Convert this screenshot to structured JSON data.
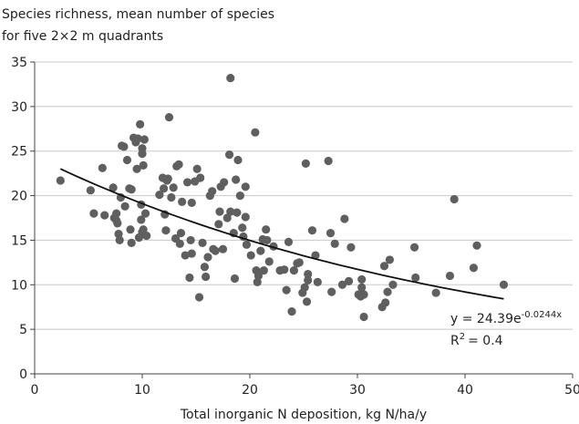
{
  "chart_data": {
    "type": "scatter",
    "title": [
      "Species richness, mean number of species",
      "for five 2×2 m quadrants"
    ],
    "x_label": "Total inorganic N deposition, kg N/ha/y",
    "xlim": [
      0,
      50
    ],
    "xticks": [
      0,
      10,
      20,
      30,
      40,
      50
    ],
    "ylim": [
      0,
      35
    ],
    "yticks": [
      0,
      5,
      10,
      15,
      20,
      25,
      30,
      35
    ],
    "grid": true,
    "color": "#5f5f5f",
    "trendline": {
      "coefficient": 24.39,
      "rate": -0.0244,
      "xlim": [
        2.4,
        43.6
      ]
    },
    "equation": {
      "base": "y = 24.39e",
      "exponent": "-0.0244x"
    },
    "r_squared": {
      "base": "R",
      "sup": "2",
      "rest": "= 0.4"
    },
    "x": [
      2.4,
      5.2,
      5.5,
      6.3,
      6.5,
      7.3,
      7.4,
      7.6,
      7.6,
      7.7,
      7.8,
      7.9,
      8,
      8.1,
      8.3,
      8.4,
      8.6,
      8.8,
      9,
      8.9,
      9,
      9.2,
      9.4,
      9.5,
      9.6,
      9.7,
      9.8,
      9.9,
      9.9,
      10,
      10,
      10.1,
      10.2,
      10,
      10.1,
      10.3,
      10.4,
      11.6,
      11.9,
      12,
      12.1,
      12.2,
      12.3,
      12.4,
      12.5,
      12.7,
      12.9,
      13.1,
      13.2,
      13.4,
      13.5,
      13.6,
      13.7,
      14,
      14.2,
      14.4,
      14.5,
      14.6,
      14.6,
      14.9,
      15.1,
      15.3,
      15.4,
      15.6,
      15.8,
      15.9,
      16.1,
      16.3,
      16.5,
      16.6,
      16.8,
      17.1,
      17.2,
      17.3,
      17.5,
      17.6,
      17.9,
      18.1,
      18.2,
      18.2,
      18.5,
      18.6,
      18.7,
      18.8,
      18.9,
      19.1,
      19.3,
      19.4,
      19.6,
      19.6,
      19.7,
      20.1,
      20.5,
      20.6,
      20.7,
      20.8,
      21,
      21.2,
      21.3,
      21.5,
      21.6,
      21.8,
      22.2,
      22.8,
      23.2,
      23.4,
      23.6,
      23.9,
      24.1,
      24.4,
      24.6,
      24.9,
      25.1,
      25.2,
      25.3,
      25.4,
      25.4,
      25.8,
      26.1,
      26.3,
      27.3,
      27.5,
      27.6,
      27.9,
      28.6,
      28.8,
      29.2,
      29.4,
      30.1,
      30.3,
      30.4,
      30.4,
      30.6,
      30.6,
      32.3,
      32.5,
      32.6,
      32.8,
      33,
      33.3,
      35.3,
      35.4,
      37.3,
      38.6,
      39,
      40.8,
      41.1,
      43.6
    ],
    "values": [
      21.7,
      20.6,
      18,
      23.1,
      17.8,
      20.9,
      17.5,
      18,
      17.2,
      16.9,
      15.7,
      15,
      19.8,
      25.6,
      25.5,
      18.8,
      24,
      20.8,
      20.7,
      16.2,
      14.7,
      26.5,
      26,
      23,
      26.4,
      15.3,
      28,
      19,
      17.3,
      25.3,
      24.7,
      23.4,
      26.3,
      15.9,
      16.2,
      18,
      15.5,
      20.1,
      22,
      20.8,
      17.9,
      16.1,
      21.7,
      21.9,
      28.8,
      19.8,
      20.9,
      15.2,
      23.3,
      23.5,
      14.6,
      15.8,
      19.3,
      13.3,
      21.5,
      10.8,
      15,
      13.5,
      19.2,
      21.6,
      23,
      8.6,
      22,
      14.7,
      12,
      10.9,
      13.1,
      20,
      20.5,
      14,
      13.8,
      16.8,
      18.2,
      21,
      14,
      21.5,
      17.5,
      24.6,
      33.2,
      18.2,
      15.8,
      10.7,
      21.8,
      18.1,
      24,
      20,
      16.4,
      15.4,
      21,
      17.6,
      14.5,
      13.3,
      27.1,
      11.6,
      10.3,
      11,
      13.8,
      15.1,
      11.6,
      16.2,
      15,
      12.6,
      14.3,
      11.6,
      11.7,
      9.4,
      14.8,
      7,
      11.6,
      12.4,
      12.5,
      9.1,
      9.7,
      23.6,
      8.1,
      10.5,
      11.2,
      16.1,
      13.3,
      10.3,
      23.9,
      15.8,
      9.2,
      14.6,
      10,
      17.4,
      10.4,
      14.2,
      8.9,
      8.7,
      10.6,
      9.7,
      6.4,
      8.9,
      7.5,
      12.1,
      8,
      9.2,
      12.8,
      10,
      14.2,
      10.8,
      9.1,
      11,
      19.6,
      11.9,
      14.4,
      10
    ]
  }
}
